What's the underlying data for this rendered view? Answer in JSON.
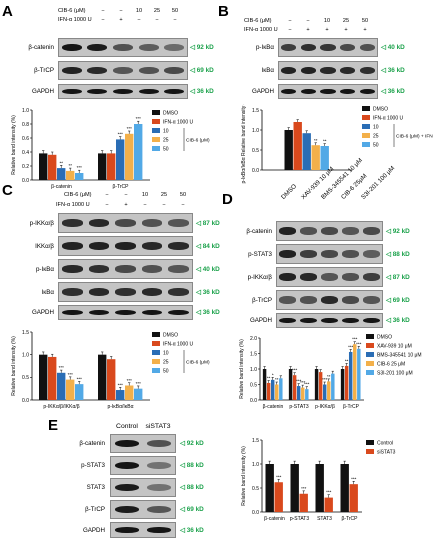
{
  "panels": [
    {
      "letter": "A",
      "headers": [
        {
          "label": "CIB-6 (μM)",
          "values": [
            "−",
            "−",
            "10",
            "25",
            "50"
          ]
        },
        {
          "label": "IFN-α 1000 U",
          "values": [
            "−",
            "+",
            "−",
            "−",
            "−"
          ]
        }
      ],
      "rows": [
        {
          "label": "β-catenin",
          "kd": "92 kD",
          "levels": [
            1.0,
            0.95,
            0.55,
            0.45,
            0.35
          ]
        },
        {
          "label": "β-TrCP",
          "kd": "69 kD",
          "levels": [
            0.9,
            0.85,
            0.5,
            0.55,
            0.6
          ]
        },
        {
          "label": "GAPDH",
          "kd": "36 kD",
          "levels": [
            1,
            1,
            1,
            1,
            1
          ]
        }
      ]
    },
    {
      "letter": "B",
      "headers": [
        {
          "label": "CIB-6 (μM)",
          "values": [
            "−",
            "−",
            "10",
            "25",
            "50"
          ]
        },
        {
          "label": "IFN-α 1000 U",
          "values": [
            "−",
            "+",
            "+",
            "+",
            "+"
          ]
        }
      ],
      "rows": [
        {
          "label": "p-IκBα",
          "kd": "40 kD",
          "levels": [
            0.7,
            0.8,
            0.75,
            0.6,
            0.55
          ]
        },
        {
          "label": "IκBα",
          "kd": "36 kD",
          "levels": [
            0.9,
            0.9,
            0.85,
            0.85,
            0.8
          ]
        },
        {
          "label": "GAPDH",
          "kd": "36 kD",
          "levels": [
            1,
            1,
            1,
            1,
            1
          ]
        }
      ]
    },
    {
      "letter": "C",
      "headers": [
        {
          "label": "CIB-6 (μM)",
          "values": [
            "−",
            "−",
            "10",
            "25",
            "50"
          ]
        },
        {
          "label": "IFN-α 1000 U",
          "values": [
            "−",
            "+",
            "−",
            "−",
            "−"
          ]
        }
      ],
      "rows": [
        {
          "label": "p-IKKα/β",
          "kd": "87 kD",
          "levels": [
            0.8,
            0.85,
            0.6,
            0.55,
            0.5
          ]
        },
        {
          "label": "IKKα/β",
          "kd": "84 kD",
          "levels": [
            0.9,
            0.9,
            0.9,
            0.85,
            0.85
          ]
        },
        {
          "label": "p-IκBα",
          "kd": "40 kD",
          "levels": [
            0.85,
            0.8,
            0.6,
            0.55,
            0.5
          ]
        },
        {
          "label": "IκBα",
          "kd": "36 kD",
          "levels": [
            0.8,
            0.85,
            0.8,
            0.85,
            0.8
          ]
        },
        {
          "label": "GAPDH",
          "kd": "36 kD",
          "levels": [
            1,
            1,
            1,
            1,
            1
          ]
        }
      ]
    },
    {
      "letter": "D",
      "lanes": [
        "DMSO",
        "XAV-939 10 μM",
        "BMS-345541 10 μM",
        "CIB-6 25μM",
        "S3I-201 100 μM"
      ],
      "rows": [
        {
          "label": "β-catenin",
          "kd": "92 kD",
          "levels": [
            0.9,
            0.55,
            0.6,
            0.5,
            0.6
          ]
        },
        {
          "label": "p-STAT3",
          "kd": "88 kD",
          "levels": [
            0.9,
            0.7,
            0.6,
            0.55,
            0.45
          ]
        },
        {
          "label": "p-IKKα/β",
          "kd": "87 kD",
          "levels": [
            0.9,
            0.85,
            0.5,
            0.55,
            0.7
          ]
        },
        {
          "label": "β-TrCP",
          "kd": "69 kD",
          "levels": [
            0.5,
            0.55,
            0.85,
            0.6,
            0.5
          ]
        },
        {
          "label": "GAPDH",
          "kd": "36 kD",
          "levels": [
            1,
            1,
            1,
            1,
            1
          ]
        }
      ]
    },
    {
      "letter": "E",
      "lanes": [
        "Control",
        "siSTAT3"
      ],
      "rows": [
        {
          "label": "β-catenin",
          "kd": "92 kD",
          "levels": [
            1.0,
            0.55
          ]
        },
        {
          "label": "p-STAT3",
          "kd": "88 kD",
          "levels": [
            1.0,
            0.3
          ]
        },
        {
          "label": "STAT3",
          "kd": "88 kD",
          "levels": [
            0.95,
            0.3
          ]
        },
        {
          "label": "β-TrCP",
          "kd": "69 kD",
          "levels": [
            0.95,
            0.5
          ]
        },
        {
          "label": "GAPDH",
          "kd": "36 kD",
          "levels": [
            1,
            1
          ]
        }
      ]
    }
  ],
  "chart_data": [
    {
      "type": "bar",
      "panel": "A",
      "ylabel": "Relative band intensity (%)",
      "categories": [
        "β-catenin",
        "β-TrCP"
      ],
      "ylim": [
        0,
        1.0
      ],
      "yticks": [
        "0.0",
        "0.2",
        "0.4",
        "0.6",
        "0.8",
        "1.0"
      ],
      "series": [
        {
          "name": "DMSO",
          "color": "#111111",
          "values": [
            0.38,
            0.38
          ],
          "stars": [
            "",
            ""
          ]
        },
        {
          "name": "IFN-α 1000 U",
          "color": "#d9491d",
          "values": [
            0.36,
            0.38
          ],
          "stars": [
            "",
            ""
          ]
        },
        {
          "name": "10",
          "color": "#2a6db5",
          "values": [
            0.17,
            0.58
          ],
          "stars": [
            "**",
            "***"
          ]
        },
        {
          "name": "25",
          "color": "#f3b04a",
          "values": [
            0.13,
            0.66
          ],
          "stars": [
            "**",
            "***"
          ]
        },
        {
          "name": "50",
          "color": "#52a9e6",
          "values": [
            0.1,
            0.8
          ],
          "stars": [
            "***",
            "***"
          ]
        }
      ],
      "legend_group": "CIB-6 (μM)"
    },
    {
      "type": "bar",
      "panel": "B",
      "ylabel": "p-IκBα/IκBα Relative band intensity (%)",
      "categories": [
        ""
      ],
      "ylim": [
        0,
        1.5
      ],
      "yticks": [
        "0.0",
        "0.5",
        "1.0",
        "1.5"
      ],
      "series": [
        {
          "name": "DMSO",
          "color": "#111111",
          "values": [
            1.0
          ],
          "stars": [
            ""
          ]
        },
        {
          "name": "IFN-α 1000 U",
          "color": "#d9491d",
          "values": [
            1.2
          ],
          "stars": [
            ""
          ]
        },
        {
          "name": "10",
          "color": "#2a6db5",
          "values": [
            0.92
          ],
          "stars": [
            ""
          ]
        },
        {
          "name": "25",
          "color": "#f3b04a",
          "values": [
            0.62
          ],
          "stars": [
            "**"
          ]
        },
        {
          "name": "50",
          "color": "#52a9e6",
          "values": [
            0.6
          ],
          "stars": [
            "**"
          ]
        }
      ],
      "legend_group": "CIB-6 (μM) + IFN-α"
    },
    {
      "type": "bar",
      "panel": "C",
      "ylabel": "Relative band intensity (%)",
      "categories": [
        "p-IKKα/β/IKKα/β",
        "p-IκBα/IκBα"
      ],
      "ylim": [
        0,
        1.5
      ],
      "yticks": [
        "0.0",
        "0.5",
        "1.0",
        "1.5"
      ],
      "series": [
        {
          "name": "DMSO",
          "color": "#111111",
          "values": [
            1.0,
            1.0
          ],
          "stars": [
            "",
            ""
          ]
        },
        {
          "name": "IFN-α 1000 U",
          "color": "#d9491d",
          "values": [
            0.95,
            0.9
          ],
          "stars": [
            "",
            ""
          ]
        },
        {
          "name": "10",
          "color": "#2a6db5",
          "values": [
            0.6,
            0.22
          ],
          "stars": [
            "***",
            "***"
          ]
        },
        {
          "name": "25",
          "color": "#f3b04a",
          "values": [
            0.45,
            0.32
          ],
          "stars": [
            "***",
            "***"
          ]
        },
        {
          "name": "50",
          "color": "#52a9e6",
          "values": [
            0.35,
            0.25
          ],
          "stars": [
            "***",
            "***"
          ]
        }
      ],
      "legend_group": "CIB-6 (μM)"
    },
    {
      "type": "bar",
      "panel": "D",
      "ylabel": "Relative band intensity (%)",
      "categories": [
        "β-catenin",
        "p-STAT3",
        "p-IKKα/β",
        "β-TrCP"
      ],
      "ylim": [
        0,
        2.0
      ],
      "yticks": [
        "0.0",
        "0.5",
        "1.0",
        "1.5",
        "2.0"
      ],
      "series": [
        {
          "name": "DMSO",
          "color": "#111111",
          "values": [
            1.0,
            1.0,
            1.0,
            1.0
          ],
          "stars": [
            "",
            "",
            "",
            ""
          ]
        },
        {
          "name": "XAV-939 10 μM",
          "color": "#d9491d",
          "values": [
            0.55,
            0.8,
            0.9,
            1.1
          ],
          "stars": [
            "**",
            "***",
            "",
            "**"
          ]
        },
        {
          "name": "BMS-345541 10 μM",
          "color": "#2a6db5",
          "values": [
            0.65,
            0.45,
            0.5,
            1.55
          ],
          "stars": [
            "*",
            "***",
            "***",
            "***"
          ]
        },
        {
          "name": "CIB-6 25 μM",
          "color": "#f3b04a",
          "values": [
            0.5,
            0.4,
            0.6,
            1.8
          ],
          "stars": [
            "**",
            "***",
            "**",
            "***"
          ]
        },
        {
          "name": "S3I-201 100 μM",
          "color": "#52a9e6",
          "values": [
            0.7,
            0.35,
            0.85,
            1.65
          ],
          "stars": [
            "",
            "***",
            "",
            "***"
          ]
        }
      ]
    },
    {
      "type": "bar",
      "panel": "E",
      "ylabel": "Relative band intensity (%)",
      "categories": [
        "β-catenin",
        "p-STAT3",
        "STAT3",
        "β-TrCP"
      ],
      "ylim": [
        0,
        1.5
      ],
      "yticks": [
        "0.0",
        "0.5",
        "1.0",
        "1.5"
      ],
      "series": [
        {
          "name": "Control",
          "color": "#111111",
          "values": [
            1.0,
            1.0,
            1.0,
            1.0
          ],
          "stars": [
            "",
            "",
            "",
            ""
          ]
        },
        {
          "name": "siSTAT3",
          "color": "#d9491d",
          "values": [
            0.62,
            0.38,
            0.3,
            0.58
          ],
          "stars": [
            "***",
            "***",
            "***",
            "***"
          ]
        }
      ]
    }
  ]
}
